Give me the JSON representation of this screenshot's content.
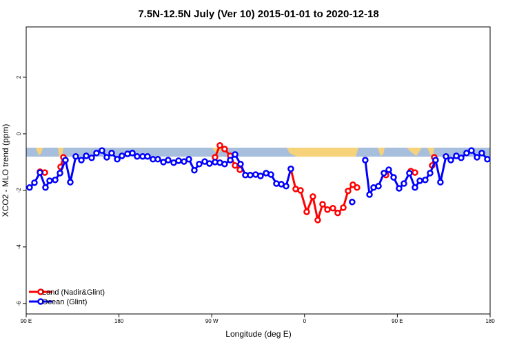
{
  "chart_data": {
    "type": "line",
    "title": "7.5N-12.5N July (Ver 10)   2015-01-01 to 2020-12-18",
    "x_label": "Longitude (deg E)",
    "y_label": "XCO2 - MLO trend (ppm)",
    "xlim": [
      90,
      540
    ],
    "ylim": [
      -6.37,
      3.78
    ],
    "xticks": [
      {
        "value": 90,
        "label": "90 E"
      },
      180,
      {
        "value": 270,
        "label": "90 W"
      },
      {
        "value": 360,
        "label": "0"
      },
      {
        "value": 450,
        "label": "90 E"
      },
      {
        "value": 540,
        "label": "180"
      }
    ],
    "yticks": [
      2,
      0,
      -2,
      -4,
      -6
    ],
    "legend": "bottom-left",
    "series": [
      {
        "name": "Land (Nadir&Glint)",
        "color": "#ff0000",
        "x": [
          103.4,
          108.1,
          115,
          123.4,
          126.1,
          200,
          273.2,
          277.9,
          282.5,
          287.9,
          292.6,
          297.3,
          320,
          346.7,
          351.4,
          356.1,
          362.1,
          368.1,
          372.8,
          377.5,
          382.2,
          387.5,
          392.2,
          397.6,
          402.2,
          406.9,
          410.9,
          415,
          439.0,
          450,
          463.1,
          467.1,
          475,
          483.8,
          485.8
        ],
        "values": [
          -1.34,
          -1.37,
          null,
          -1.17,
          -0.83,
          null,
          -0.83,
          -0.41,
          -0.54,
          -0.78,
          -1.12,
          -1.27,
          null,
          -1.24,
          -1.95,
          -2.0,
          -2.76,
          -2.22,
          -3.05,
          -2.49,
          -2.68,
          -2.63,
          -2.8,
          -2.61,
          -2.02,
          -1.8,
          -1.9,
          null,
          -1.46,
          null,
          -1.32,
          -1.37,
          null,
          -1.12,
          -0.83
        ]
      },
      {
        "name": "Ocean (Glint)",
        "color": "#0000ff",
        "x": [
          93.3,
          98.0,
          103.4,
          108.7,
          112.7,
          118.1,
          122.8,
          128.1,
          132.8,
          138.1,
          143.5,
          148.2,
          153.5,
          158.2,
          163.5,
          168.2,
          172.9,
          178.3,
          182.9,
          188.3,
          193.0,
          197.6,
          203.0,
          207.7,
          213.0,
          217.7,
          223.1,
          227.7,
          233.1,
          237.8,
          243.1,
          247.8,
          253.1,
          257.8,
          263.2,
          267.8,
          273.2,
          277.9,
          282.5,
          287.9,
          292.6,
          297.9,
          302.6,
          307.3,
          312.6,
          317.3,
          322.7,
          327.4,
          332.7,
          337.4,
          342.1,
          346.7,
          376,
          406.2,
          412,
          418.9,
          423.0,
          427.0,
          431.7,
          437.0,
          441.7,
          446.4,
          451.7,
          456.4,
          461.7,
          467.1,
          471.8,
          477.1,
          481.8,
          487.1,
          491.8,
          497.2,
          501.9,
          507.2,
          511.9,
          517.2,
          521.9,
          527.3,
          531.9,
          537.3
        ],
        "values": [
          -1.9,
          -1.73,
          -1.37,
          -1.9,
          -1.66,
          -1.63,
          -1.39,
          -0.93,
          -1.71,
          -0.8,
          -0.93,
          -0.78,
          -0.85,
          -0.68,
          -0.59,
          -0.83,
          -0.68,
          -0.9,
          -0.78,
          -0.71,
          -0.68,
          -0.8,
          -0.8,
          -0.8,
          -0.9,
          -0.9,
          -1.0,
          -0.93,
          -1.02,
          -0.95,
          -0.98,
          -0.9,
          -1.29,
          -1.07,
          -0.98,
          -1.05,
          -1.0,
          -1.02,
          -1.07,
          -0.93,
          -0.73,
          -1.07,
          -1.46,
          -1.46,
          -1.44,
          -1.49,
          -1.39,
          -1.44,
          -1.76,
          -1.78,
          -1.85,
          -1.24,
          null,
          -2.41,
          null,
          -0.93,
          -2.15,
          -1.9,
          -1.85,
          -1.39,
          -1.27,
          -1.54,
          -1.93,
          -1.76,
          -1.39,
          -1.9,
          -1.66,
          -1.63,
          -1.39,
          -0.93,
          -1.71,
          -0.8,
          -0.93,
          -0.78,
          -0.85,
          -0.68,
          -0.59,
          -0.83,
          -0.68,
          -0.9
        ]
      }
    ]
  }
}
